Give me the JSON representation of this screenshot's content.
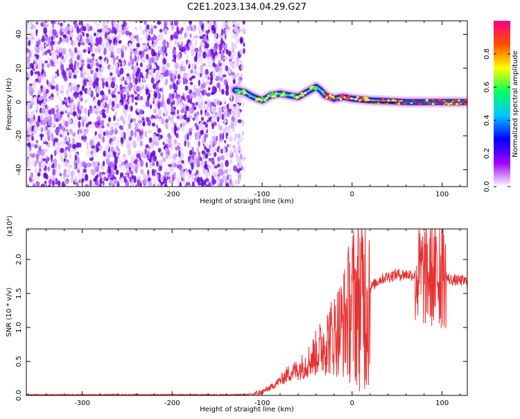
{
  "figure": {
    "title": "C2E1.2023.134.04.29.G27"
  },
  "chart_data": [
    {
      "type": "heatmap",
      "xlabel": "Height of straight line (km)",
      "ylabel": "Frequency (Hz)",
      "xlim": [
        -362,
        128
      ],
      "ylim": [
        -50,
        48
      ],
      "xticks": [
        -300,
        -200,
        -100,
        0,
        100
      ],
      "yticks": [
        -40,
        -20,
        0,
        20,
        40
      ],
      "grid": false,
      "colorbar": {
        "label": "Normalized spectral amplitude",
        "ticks": [
          0.0,
          0.2,
          0.4,
          0.6,
          0.8
        ],
        "range": [
          0,
          1
        ],
        "colors": [
          "#ffffff",
          "#a000ff",
          "#0000ff",
          "#00c8ff",
          "#00ff60",
          "#ffff00",
          "#ff5000",
          "#ff0080"
        ]
      },
      "features": {
        "broadband_noise_range_km": [
          -362,
          -120
        ],
        "signal_start_km": -130,
        "signal_trace": {
          "x": [
            -130,
            -120,
            -110,
            -100,
            -90,
            -80,
            -70,
            -60,
            -50,
            -40,
            -35,
            -30,
            -20,
            -10,
            0,
            10,
            20,
            40,
            60,
            80,
            100,
            128
          ],
          "y": [
            7,
            6,
            3,
            1,
            4,
            5,
            4,
            3,
            6,
            9,
            7,
            4,
            2,
            3,
            2,
            1.5,
            1,
            0.5,
            0,
            0,
            0,
            0
          ]
        },
        "peak_colors": [
          "#00ff60",
          "#ffff00",
          "#ff3030"
        ]
      }
    },
    {
      "type": "line",
      "xlabel": "Height of straight line (km)",
      "ylabel": "SNR (10 * v/v)",
      "y_multiplier": "(x10⁴)",
      "xlim": [
        -362,
        128
      ],
      "ylim": [
        0,
        2.45
      ],
      "xticks": [
        -300,
        -200,
        -100,
        0,
        100
      ],
      "yticks": [
        0.0,
        0.5,
        1.0,
        1.5,
        2.0
      ],
      "grid": false,
      "series": [
        {
          "color": "#e83030",
          "x": [
            -362,
            -120,
            -110,
            -100,
            -90,
            -80,
            -70,
            -60,
            -50,
            -40,
            -30,
            -20,
            -10,
            0,
            10,
            20,
            30,
            40,
            50,
            60,
            70,
            80,
            90,
            100,
            110,
            128
          ],
          "y": [
            0.01,
            0.01,
            0.02,
            0.05,
            0.12,
            0.22,
            0.33,
            0.38,
            0.48,
            0.62,
            0.78,
            0.9,
            1.05,
            1.32,
            1.45,
            1.58,
            1.7,
            1.75,
            1.78,
            1.78,
            1.77,
            1.78,
            1.76,
            1.75,
            1.7,
            1.68
          ]
        }
      ]
    }
  ]
}
